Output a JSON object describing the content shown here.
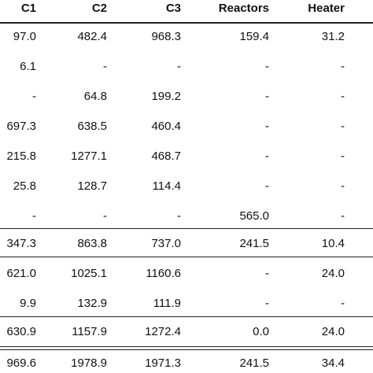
{
  "table": {
    "headers": [
      "C1",
      "C2",
      "C3",
      "Reactors",
      "Heater"
    ],
    "clipped_header": "C",
    "rows": [
      [
        "97.0",
        "482.4",
        "968.3",
        "159.4",
        "31.2"
      ],
      [
        "6.1",
        "-",
        "-",
        "-",
        "-"
      ],
      [
        "-",
        "64.8",
        "199.2",
        "-",
        "-"
      ],
      [
        "697.3",
        "638.5",
        "460.4",
        "-",
        "-"
      ],
      [
        "215.8",
        "1277.1",
        "468.7",
        "-",
        "-"
      ],
      [
        "25.8",
        "128.7",
        "114.4",
        "-",
        "-"
      ],
      [
        "-",
        "-",
        "-",
        "565.0",
        "-"
      ],
      [
        "347.3",
        "863.8",
        "737.0",
        "241.5",
        "10.4"
      ],
      [
        "621.0",
        "1025.1",
        "1160.6",
        "-",
        "24.0"
      ],
      [
        "9.9",
        "132.9",
        "111.9",
        "-",
        "-"
      ],
      [
        "630.9",
        "1157.9",
        "1272.4",
        "0.0",
        "24.0"
      ],
      [
        "969.6",
        "1978.9",
        "1971.3",
        "241.5",
        "34.4"
      ]
    ]
  }
}
